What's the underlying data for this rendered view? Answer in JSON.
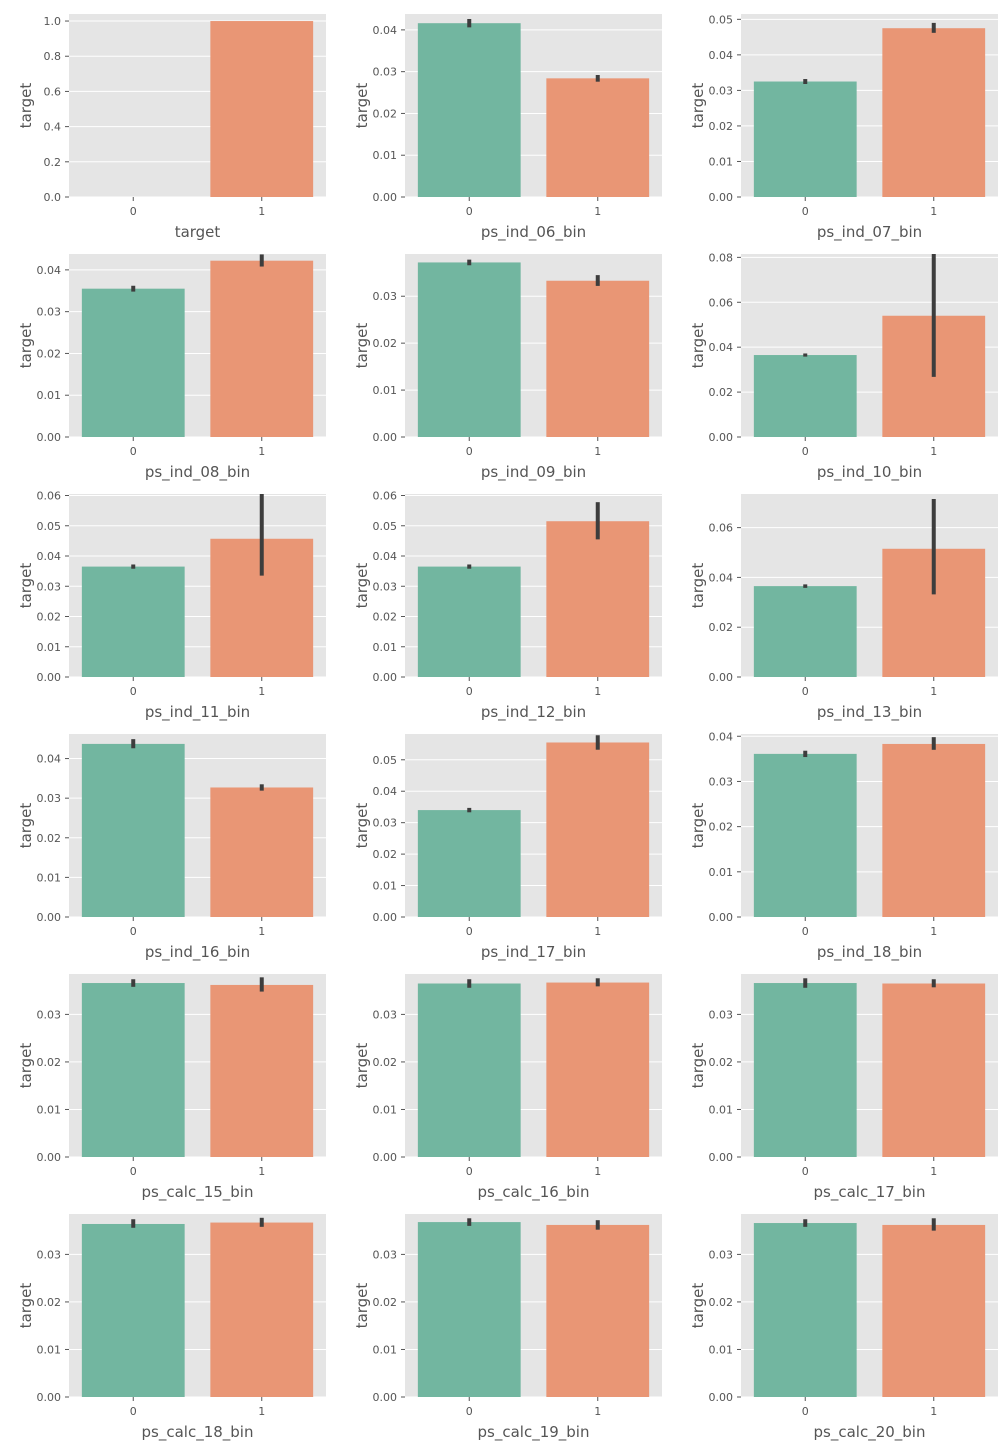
{
  "colors": {
    "bar0": "#72b6a0",
    "bar1": "#e99675",
    "plot_bg": "#e5e5e5",
    "grid": "#ffffff",
    "errorbar": "#3d3d3d",
    "text": "#555555"
  },
  "chart_data": [
    {
      "type": "bar",
      "categories": [
        "0",
        "1"
      ],
      "values": [
        0.0,
        1.0
      ],
      "errors": [
        [
          0.0,
          0.0
        ],
        [
          1.0,
          1.0
        ]
      ],
      "xlabel": "target",
      "ylabel": "target",
      "ylim": [
        0,
        1.04
      ],
      "yticks": [
        0.0,
        0.2,
        0.4,
        0.6,
        0.8,
        1.0
      ],
      "ytick_labels": [
        "0.0",
        "0.2",
        "0.4",
        "0.6",
        "0.8",
        "1.0"
      ],
      "grid": true
    },
    {
      "type": "bar",
      "categories": [
        "0",
        "1"
      ],
      "values": [
        0.0416,
        0.0284
      ],
      "errors": [
        [
          0.0406,
          0.0426
        ],
        [
          0.0276,
          0.0292
        ]
      ],
      "xlabel": "ps_ind_06_bin",
      "ylabel": "target",
      "ylim": [
        0,
        0.0438
      ],
      "yticks": [
        0,
        0.01,
        0.02,
        0.03,
        0.04
      ],
      "ytick_labels": [
        "0.00",
        "0.01",
        "0.02",
        "0.03",
        "0.04"
      ],
      "grid": true
    },
    {
      "type": "bar",
      "categories": [
        "0",
        "1"
      ],
      "values": [
        0.0325,
        0.0475
      ],
      "errors": [
        [
          0.0318,
          0.0332
        ],
        [
          0.0462,
          0.049
        ]
      ],
      "xlabel": "ps_ind_07_bin",
      "ylabel": "target",
      "ylim": [
        0,
        0.0515
      ],
      "yticks": [
        0,
        0.01,
        0.02,
        0.03,
        0.04,
        0.05
      ],
      "ytick_labels": [
        "0.00",
        "0.01",
        "0.02",
        "0.03",
        "0.04",
        "0.05"
      ],
      "grid": true
    },
    {
      "type": "bar",
      "categories": [
        "0",
        "1"
      ],
      "values": [
        0.0355,
        0.0422
      ],
      "errors": [
        [
          0.0348,
          0.0362
        ],
        [
          0.0408,
          0.0437
        ]
      ],
      "xlabel": "ps_ind_08_bin",
      "ylabel": "target",
      "ylim": [
        0,
        0.0438
      ],
      "yticks": [
        0,
        0.01,
        0.02,
        0.03,
        0.04
      ],
      "ytick_labels": [
        "0.00",
        "0.01",
        "0.02",
        "0.03",
        "0.04"
      ],
      "grid": true
    },
    {
      "type": "bar",
      "categories": [
        "0",
        "1"
      ],
      "values": [
        0.0372,
        0.0333
      ],
      "errors": [
        [
          0.0366,
          0.0378
        ],
        [
          0.0322,
          0.0345
        ]
      ],
      "xlabel": "ps_ind_09_bin",
      "ylabel": "target",
      "ylim": [
        0,
        0.039
      ],
      "yticks": [
        0,
        0.01,
        0.02,
        0.03
      ],
      "ytick_labels": [
        "0.00",
        "0.01",
        "0.02",
        "0.03"
      ],
      "grid": true
    },
    {
      "type": "bar",
      "categories": [
        "0",
        "1"
      ],
      "values": [
        0.0365,
        0.054
      ],
      "errors": [
        [
          0.0358,
          0.0372
        ],
        [
          0.0268,
          0.0815
        ]
      ],
      "xlabel": "ps_ind_10_bin",
      "ylabel": "target",
      "ylim": [
        0,
        0.0815
      ],
      "yticks": [
        0,
        0.02,
        0.04,
        0.06,
        0.08
      ],
      "ytick_labels": [
        "0.00",
        "0.02",
        "0.04",
        "0.06",
        "0.08"
      ],
      "grid": true
    },
    {
      "type": "bar",
      "categories": [
        "0",
        "1"
      ],
      "values": [
        0.0365,
        0.0457
      ],
      "errors": [
        [
          0.0358,
          0.0372
        ],
        [
          0.0335,
          0.0605
        ]
      ],
      "xlabel": "ps_ind_11_bin",
      "ylabel": "target",
      "ylim": [
        0,
        0.0605
      ],
      "yticks": [
        0,
        0.01,
        0.02,
        0.03,
        0.04,
        0.05,
        0.06
      ],
      "ytick_labels": [
        "0.00",
        "0.01",
        "0.02",
        "0.03",
        "0.04",
        "0.05",
        "0.06"
      ],
      "grid": true
    },
    {
      "type": "bar",
      "categories": [
        "0",
        "1"
      ],
      "values": [
        0.0365,
        0.0515
      ],
      "errors": [
        [
          0.0358,
          0.0372
        ],
        [
          0.0455,
          0.0578
        ]
      ],
      "xlabel": "ps_ind_12_bin",
      "ylabel": "target",
      "ylim": [
        0,
        0.0605
      ],
      "yticks": [
        0,
        0.01,
        0.02,
        0.03,
        0.04,
        0.05,
        0.06
      ],
      "ytick_labels": [
        "0.00",
        "0.01",
        "0.02",
        "0.03",
        "0.04",
        "0.05",
        "0.06"
      ],
      "grid": true
    },
    {
      "type": "bar",
      "categories": [
        "0",
        "1"
      ],
      "values": [
        0.0365,
        0.0515
      ],
      "errors": [
        [
          0.0358,
          0.0372
        ],
        [
          0.0332,
          0.0715
        ]
      ],
      "xlabel": "ps_ind_13_bin",
      "ylabel": "target",
      "ylim": [
        0,
        0.0735
      ],
      "yticks": [
        0,
        0.02,
        0.04,
        0.06
      ],
      "ytick_labels": [
        "0.00",
        "0.02",
        "0.04",
        "0.06"
      ],
      "grid": true
    },
    {
      "type": "bar",
      "categories": [
        "0",
        "1"
      ],
      "values": [
        0.0437,
        0.0327
      ],
      "errors": [
        [
          0.0426,
          0.0449
        ],
        [
          0.0319,
          0.0335
        ]
      ],
      "xlabel": "ps_ind_16_bin",
      "ylabel": "target",
      "ylim": [
        0,
        0.0462
      ],
      "yticks": [
        0,
        0.01,
        0.02,
        0.03,
        0.04
      ],
      "ytick_labels": [
        "0.00",
        "0.01",
        "0.02",
        "0.03",
        "0.04"
      ],
      "grid": true
    },
    {
      "type": "bar",
      "categories": [
        "0",
        "1"
      ],
      "values": [
        0.034,
        0.0555
      ],
      "errors": [
        [
          0.0333,
          0.0347
        ],
        [
          0.0532,
          0.0578
        ]
      ],
      "xlabel": "ps_ind_17_bin",
      "ylabel": "target",
      "ylim": [
        0,
        0.0582
      ],
      "yticks": [
        0,
        0.01,
        0.02,
        0.03,
        0.04,
        0.05
      ],
      "ytick_labels": [
        "0.00",
        "0.01",
        "0.02",
        "0.03",
        "0.04",
        "0.05"
      ],
      "grid": true
    },
    {
      "type": "bar",
      "categories": [
        "0",
        "1"
      ],
      "values": [
        0.0361,
        0.0383
      ],
      "errors": [
        [
          0.0354,
          0.0368
        ],
        [
          0.037,
          0.0398
        ]
      ],
      "xlabel": "ps_ind_18_bin",
      "ylabel": "target",
      "ylim": [
        0,
        0.0405
      ],
      "yticks": [
        0,
        0.01,
        0.02,
        0.03,
        0.04
      ],
      "ytick_labels": [
        "0.00",
        "0.01",
        "0.02",
        "0.03",
        "0.04"
      ],
      "grid": true
    },
    {
      "type": "bar",
      "categories": [
        "0",
        "1"
      ],
      "values": [
        0.0366,
        0.0362
      ],
      "errors": [
        [
          0.0358,
          0.0374
        ],
        [
          0.0348,
          0.0378
        ]
      ],
      "xlabel": "ps_calc_15_bin",
      "ylabel": "target",
      "ylim": [
        0,
        0.0385
      ],
      "yticks": [
        0,
        0.01,
        0.02,
        0.03
      ],
      "ytick_labels": [
        "0.00",
        "0.01",
        "0.02",
        "0.03"
      ],
      "grid": true
    },
    {
      "type": "bar",
      "categories": [
        "0",
        "1"
      ],
      "values": [
        0.0365,
        0.0367
      ],
      "errors": [
        [
          0.0356,
          0.0374
        ],
        [
          0.0359,
          0.0376
        ]
      ],
      "xlabel": "ps_calc_16_bin",
      "ylabel": "target",
      "ylim": [
        0,
        0.0385
      ],
      "yticks": [
        0,
        0.01,
        0.02,
        0.03
      ],
      "ytick_labels": [
        "0.00",
        "0.01",
        "0.02",
        "0.03"
      ],
      "grid": true
    },
    {
      "type": "bar",
      "categories": [
        "0",
        "1"
      ],
      "values": [
        0.0366,
        0.0365
      ],
      "errors": [
        [
          0.0356,
          0.0376
        ],
        [
          0.0357,
          0.0374
        ]
      ],
      "xlabel": "ps_calc_17_bin",
      "ylabel": "target",
      "ylim": [
        0,
        0.0385
      ],
      "yticks": [
        0,
        0.01,
        0.02,
        0.03
      ],
      "ytick_labels": [
        "0.00",
        "0.01",
        "0.02",
        "0.03"
      ],
      "grid": true
    },
    {
      "type": "bar",
      "categories": [
        "0",
        "1"
      ],
      "values": [
        0.0364,
        0.0367
      ],
      "errors": [
        [
          0.0356,
          0.0374
        ],
        [
          0.0358,
          0.0377
        ]
      ],
      "xlabel": "ps_calc_18_bin",
      "ylabel": "target",
      "ylim": [
        0,
        0.0385
      ],
      "yticks": [
        0,
        0.01,
        0.02,
        0.03
      ],
      "ytick_labels": [
        "0.00",
        "0.01",
        "0.02",
        "0.03"
      ],
      "grid": true
    },
    {
      "type": "bar",
      "categories": [
        "0",
        "1"
      ],
      "values": [
        0.0368,
        0.0362
      ],
      "errors": [
        [
          0.036,
          0.0376
        ],
        [
          0.0352,
          0.0372
        ]
      ],
      "xlabel": "ps_calc_19_bin",
      "ylabel": "target",
      "ylim": [
        0,
        0.0385
      ],
      "yticks": [
        0,
        0.01,
        0.02,
        0.03
      ],
      "ytick_labels": [
        "0.00",
        "0.01",
        "0.02",
        "0.03"
      ],
      "grid": true
    },
    {
      "type": "bar",
      "categories": [
        "0",
        "1"
      ],
      "values": [
        0.0366,
        0.0362
      ],
      "errors": [
        [
          0.0358,
          0.0374
        ],
        [
          0.035,
          0.0376
        ]
      ],
      "xlabel": "ps_calc_20_bin",
      "ylabel": "target",
      "ylim": [
        0,
        0.0385
      ],
      "yticks": [
        0,
        0.01,
        0.02,
        0.03
      ],
      "ytick_labels": [
        "0.00",
        "0.01",
        "0.02",
        "0.03"
      ],
      "grid": true
    }
  ]
}
